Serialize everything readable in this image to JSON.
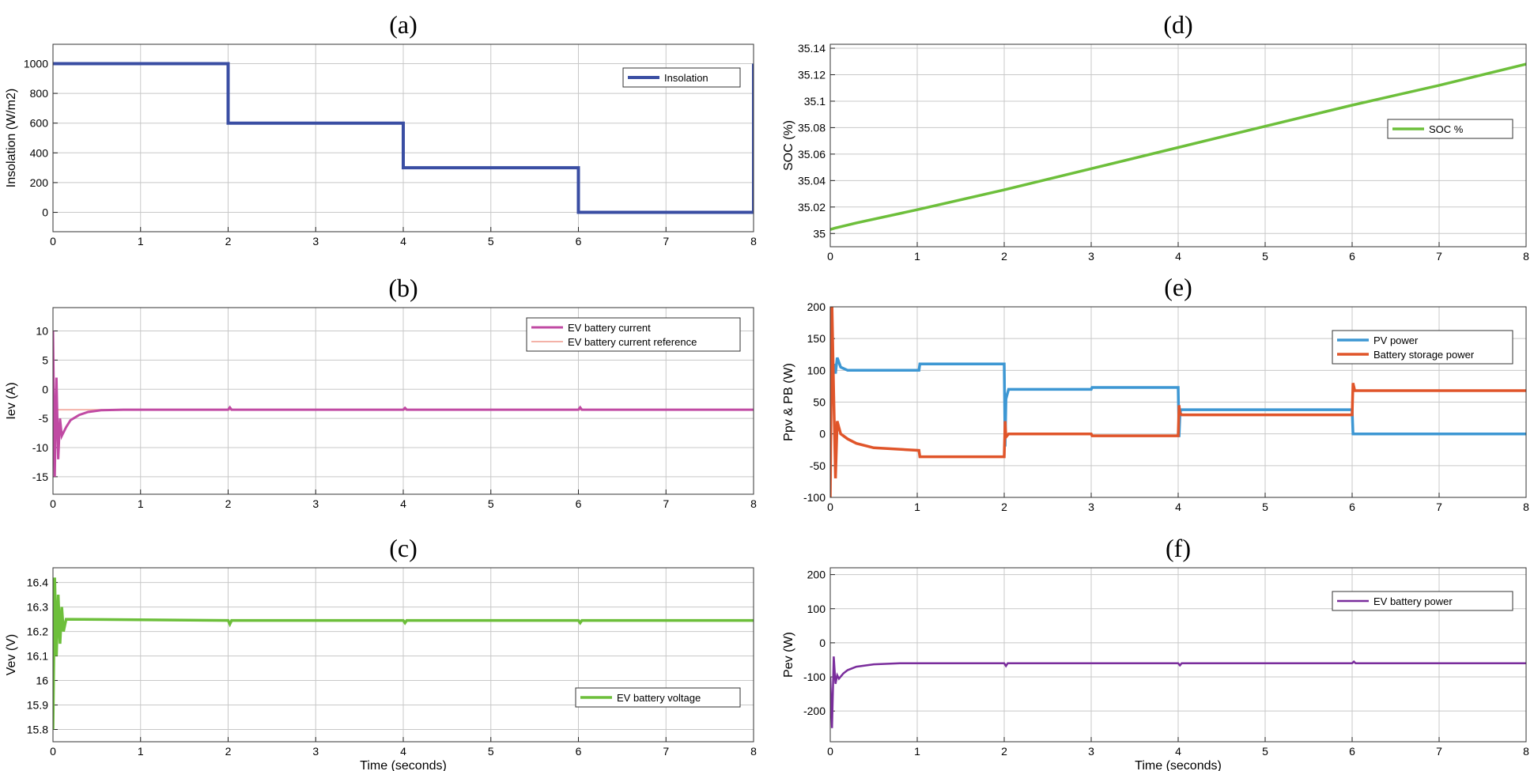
{
  "chart_data": [
    {
      "panel": "(a)",
      "type": "line",
      "title": "(a)",
      "xlabel": "",
      "ylabel": "Insolation (W/m2)",
      "xlim": [
        0,
        8
      ],
      "ylim": [
        -130,
        1130
      ],
      "xticks": [
        0,
        1,
        2,
        3,
        4,
        5,
        6,
        7,
        8
      ],
      "yticks": [
        0,
        200,
        400,
        600,
        800,
        1000
      ],
      "xtick_labels": [
        "0",
        "1",
        "2",
        "3",
        "4",
        "5",
        "6",
        "7",
        "8"
      ],
      "ytick_labels": [
        "0",
        "200",
        "400",
        "600",
        "800",
        "1000"
      ],
      "legend_pos": "top-right",
      "series": [
        {
          "name": "Insolation",
          "color": "#3a4ea3",
          "width": 4,
          "points": [
            [
              0,
              1000
            ],
            [
              2,
              1000
            ],
            [
              2,
              600
            ],
            [
              4,
              600
            ],
            [
              4,
              300
            ],
            [
              6,
              300
            ],
            [
              6,
              0
            ],
            [
              8,
              0
            ],
            [
              8,
              500
            ],
            [
              8,
              1000
            ]
          ]
        }
      ]
    },
    {
      "panel": "(b)",
      "type": "line",
      "title": "(b)",
      "xlabel": "",
      "ylabel": "Iev (A)",
      "xlim": [
        0,
        8
      ],
      "ylim": [
        -18,
        14
      ],
      "xticks": [
        0,
        1,
        2,
        3,
        4,
        5,
        6,
        7,
        8
      ],
      "yticks": [
        -15,
        -10,
        -5,
        0,
        5,
        10
      ],
      "xtick_labels": [
        "0",
        "1",
        "2",
        "3",
        "4",
        "5",
        "6",
        "7",
        "8"
      ],
      "ytick_labels": [
        "-15",
        "-10",
        "-5",
        "0",
        "5",
        "10"
      ],
      "legend_pos": "top-right",
      "series": [
        {
          "name": "EV battery current reference",
          "color": "#f4b2a8",
          "width": 2,
          "points": [
            [
              0,
              -3.5
            ],
            [
              8,
              -3.5
            ]
          ]
        },
        {
          "name": "EV battery current",
          "color": "#c04aa3",
          "width": 3,
          "points": [
            [
              0,
              10
            ],
            [
              0.02,
              -15
            ],
            [
              0.04,
              2
            ],
            [
              0.06,
              -12
            ],
            [
              0.08,
              -5
            ],
            [
              0.1,
              -8
            ],
            [
              0.15,
              -6.5
            ],
            [
              0.2,
              -5.3
            ],
            [
              0.3,
              -4.4
            ],
            [
              0.4,
              -3.9
            ],
            [
              0.55,
              -3.6
            ],
            [
              0.8,
              -3.5
            ],
            [
              2,
              -3.5
            ],
            [
              2.02,
              -3.1
            ],
            [
              2.04,
              -3.5
            ],
            [
              4,
              -3.5
            ],
            [
              4.02,
              -3.2
            ],
            [
              4.04,
              -3.5
            ],
            [
              6,
              -3.5
            ],
            [
              6.02,
              -3.1
            ],
            [
              6.04,
              -3.5
            ],
            [
              8,
              -3.5
            ]
          ]
        }
      ]
    },
    {
      "panel": "(c)",
      "type": "line",
      "title": "(c)",
      "xlabel": "Time (seconds)",
      "ylabel": "Vev (V)",
      "xlim": [
        0,
        8
      ],
      "ylim": [
        15.75,
        16.46
      ],
      "xticks": [
        0,
        1,
        2,
        3,
        4,
        5,
        6,
        7,
        8
      ],
      "yticks": [
        15.8,
        15.9,
        16,
        16.1,
        16.2,
        16.3,
        16.4
      ],
      "xtick_labels": [
        "0",
        "1",
        "2",
        "3",
        "4",
        "5",
        "6",
        "7",
        "8"
      ],
      "ytick_labels": [
        "15.8",
        "15.9",
        "16",
        "16.1",
        "16.2",
        "16.3",
        "16.4"
      ],
      "legend_pos": "bottom-right",
      "series": [
        {
          "name": "EV battery voltage",
          "color": "#6dbf3b",
          "width": 3.5,
          "points": [
            [
              0,
              15.8
            ],
            [
              0.02,
              16.42
            ],
            [
              0.04,
              16.1
            ],
            [
              0.06,
              16.35
            ],
            [
              0.08,
              16.15
            ],
            [
              0.1,
              16.3
            ],
            [
              0.12,
              16.2
            ],
            [
              0.15,
              16.25
            ],
            [
              2,
              16.245
            ],
            [
              2.02,
              16.23
            ],
            [
              2.04,
              16.245
            ],
            [
              4,
              16.245
            ],
            [
              4.02,
              16.235
            ],
            [
              4.04,
              16.245
            ],
            [
              6,
              16.245
            ],
            [
              6.02,
              16.235
            ],
            [
              6.04,
              16.245
            ],
            [
              8,
              16.245
            ]
          ]
        }
      ]
    },
    {
      "panel": "(d)",
      "type": "line",
      "title": "(d)",
      "xlabel": "",
      "ylabel": "SOC (%)",
      "xlim": [
        0,
        8
      ],
      "ylim": [
        34.99,
        35.143
      ],
      "xticks": [
        0,
        1,
        2,
        3,
        4,
        5,
        6,
        7,
        8
      ],
      "yticks": [
        35,
        35.02,
        35.04,
        35.06,
        35.08,
        35.1,
        35.12,
        35.14
      ],
      "xtick_labels": [
        "0",
        "1",
        "2",
        "3",
        "4",
        "5",
        "6",
        "7",
        "8"
      ],
      "ytick_labels": [
        "35",
        "35.02",
        "35.04",
        "35.06",
        "35.08",
        "35.1",
        "35.12",
        "35.14"
      ],
      "legend_pos": "right",
      "series": [
        {
          "name": "SOC %",
          "color": "#6dbf3b",
          "width": 3.5,
          "points": [
            [
              0,
              35.003
            ],
            [
              0.05,
              35.004
            ],
            [
              0.3,
              35.008
            ],
            [
              1,
              35.018
            ],
            [
              2,
              35.033
            ],
            [
              3,
              35.049
            ],
            [
              4,
              35.065
            ],
            [
              5,
              35.081
            ],
            [
              6,
              35.097
            ],
            [
              7,
              35.112
            ],
            [
              8,
              35.128
            ]
          ]
        }
      ]
    },
    {
      "panel": "(e)",
      "type": "line",
      "title": "(e)",
      "xlabel": "",
      "ylabel": "Ppv & PB (W)",
      "xlim": [
        0,
        8
      ],
      "ylim": [
        -100,
        200
      ],
      "xticks": [
        0,
        1,
        2,
        3,
        4,
        5,
        6,
        7,
        8
      ],
      "yticks": [
        -100,
        -50,
        0,
        50,
        100,
        150,
        200
      ],
      "xtick_labels": [
        "0",
        "1",
        "2",
        "3",
        "4",
        "5",
        "6",
        "7",
        "8"
      ],
      "ytick_labels": [
        "-100",
        "-50",
        "0",
        "50",
        "100",
        "150",
        "200"
      ],
      "legend_pos": "top-right",
      "series": [
        {
          "name": "PV power",
          "color": "#3d97d3",
          "width": 3.5,
          "points": [
            [
              0,
              80
            ],
            [
              0.02,
              70
            ],
            [
              0.04,
              110
            ],
            [
              0.06,
              95
            ],
            [
              0.08,
              120
            ],
            [
              0.12,
              105
            ],
            [
              0.2,
              100
            ],
            [
              1.02,
              100
            ],
            [
              1.03,
              110
            ],
            [
              2,
              110
            ],
            [
              2.01,
              -20
            ],
            [
              2.02,
              55
            ],
            [
              2.05,
              70
            ],
            [
              3,
              70
            ],
            [
              3.01,
              73
            ],
            [
              4,
              73
            ],
            [
              4.01,
              -5
            ],
            [
              4.02,
              30
            ],
            [
              4.03,
              38
            ],
            [
              6,
              38
            ],
            [
              6.01,
              0
            ],
            [
              8,
              0
            ]
          ]
        },
        {
          "name": "Battery storage power",
          "color": "#e0552a",
          "width": 3.5,
          "points": [
            [
              0,
              -100
            ],
            [
              0.02,
              200
            ],
            [
              0.04,
              60
            ],
            [
              0.06,
              -70
            ],
            [
              0.08,
              20
            ],
            [
              0.12,
              0
            ],
            [
              0.2,
              -8
            ],
            [
              0.3,
              -15
            ],
            [
              0.5,
              -22
            ],
            [
              1.02,
              -26
            ],
            [
              1.03,
              -36
            ],
            [
              2,
              -36
            ],
            [
              2.01,
              20
            ],
            [
              2.02,
              -5
            ],
            [
              2.05,
              0
            ],
            [
              3,
              0
            ],
            [
              3.01,
              -3
            ],
            [
              4,
              -3
            ],
            [
              4.01,
              45
            ],
            [
              4.02,
              33
            ],
            [
              4.04,
              30
            ],
            [
              6,
              30
            ],
            [
              6.01,
              80
            ],
            [
              6.03,
              68
            ],
            [
              8,
              68
            ]
          ]
        }
      ]
    },
    {
      "panel": "(f)",
      "type": "line",
      "title": "(f)",
      "xlabel": "Time (seconds)",
      "ylabel": "Pev (W)",
      "xlim": [
        0,
        8
      ],
      "ylim": [
        -290,
        220
      ],
      "xticks": [
        0,
        1,
        2,
        3,
        4,
        5,
        6,
        7,
        8
      ],
      "yticks": [
        -200,
        -100,
        0,
        100,
        200
      ],
      "xtick_labels": [
        "0",
        "1",
        "2",
        "3",
        "4",
        "5",
        "6",
        "7",
        "8"
      ],
      "ytick_labels": [
        "-200",
        "-100",
        "0",
        "100",
        "200"
      ],
      "legend_pos": "top-right",
      "series": [
        {
          "name": "EV battery power",
          "color": "#7a2d9c",
          "width": 2.5,
          "points": [
            [
              0,
              -100
            ],
            [
              0.02,
              -250
            ],
            [
              0.04,
              -40
            ],
            [
              0.06,
              -120
            ],
            [
              0.08,
              -95
            ],
            [
              0.1,
              -105
            ],
            [
              0.15,
              -90
            ],
            [
              0.2,
              -80
            ],
            [
              0.3,
              -70
            ],
            [
              0.5,
              -63
            ],
            [
              0.8,
              -60
            ],
            [
              2,
              -60
            ],
            [
              2.02,
              -68
            ],
            [
              2.04,
              -60
            ],
            [
              4,
              -60
            ],
            [
              4.02,
              -66
            ],
            [
              4.04,
              -60
            ],
            [
              6,
              -60
            ],
            [
              6.02,
              -55
            ],
            [
              6.04,
              -60
            ],
            [
              8,
              -60
            ]
          ]
        }
      ]
    }
  ]
}
